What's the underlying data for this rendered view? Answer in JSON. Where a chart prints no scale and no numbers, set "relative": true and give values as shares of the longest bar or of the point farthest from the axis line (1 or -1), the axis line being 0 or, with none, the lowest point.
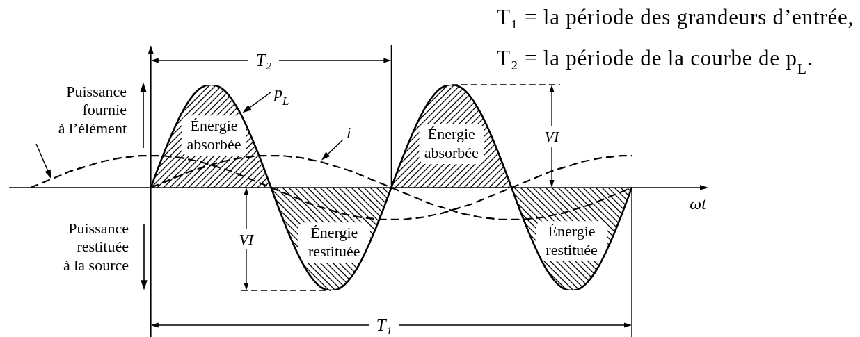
{
  "chart_data": {
    "type": "line",
    "relative": true,
    "marker": "none",
    "xlabel": "ωt",
    "categories": [
      null,
      null,
      null,
      null,
      null,
      null,
      null,
      null,
      null,
      null,
      null,
      null,
      null,
      null,
      null,
      null,
      null,
      null,
      null,
      null,
      null,
      null,
      null,
      null,
      null,
      null,
      null,
      null,
      null,
      null,
      null,
      null,
      null,
      null,
      null,
      null,
      null,
      null,
      null,
      null,
      null,
      null,
      null,
      null,
      null,
      null,
      null,
      null,
      null,
      null,
      null,
      null,
      null,
      null,
      null,
      null,
      null,
      null,
      null,
      null,
      null
    ],
    "series": [
      {
        "name": "p$_{L}$",
        "type": "area",
        "color": "#000000",
        "line_style": "solid",
        "values": [
          null,
          null,
          null,
          null,
          null,
          null,
          null,
          null,
          null,
          null,
          null,
          null,
          0,
          0.26,
          0.5,
          0.71,
          0.87,
          0.97,
          1,
          0.97,
          0.87,
          0.71,
          0.5,
          0.26,
          0,
          -0.26,
          -0.5,
          -0.71,
          -0.87,
          -0.97,
          -1,
          -0.97,
          -0.87,
          -0.71,
          -0.5,
          -0.26,
          0,
          0.26,
          0.5,
          0.71,
          0.87,
          0.97,
          1,
          0.97,
          0.87,
          0.71,
          0.5,
          0.26,
          0,
          -0.26,
          -0.5,
          -0.71,
          -0.87,
          -0.97,
          -1,
          -0.97,
          -0.87,
          -0.71,
          -0.5,
          -0.26,
          0
        ]
      },
      {
        "name": "i",
        "color": "#000000",
        "line_style": "dashed",
        "values": [
          null,
          null,
          null,
          null,
          null,
          null,
          null,
          null,
          null,
          null,
          null,
          null,
          0,
          0.04,
          0.08,
          0.12,
          0.16,
          0.19,
          0.22,
          0.25,
          0.27,
          0.29,
          0.3,
          0.31,
          0.31,
          0.31,
          0.3,
          0.29,
          0.27,
          0.25,
          0.22,
          0.19,
          0.16,
          0.12,
          0.08,
          0.04,
          0,
          -0.04,
          -0.08,
          -0.12,
          -0.16,
          -0.19,
          -0.22,
          -0.25,
          -0.27,
          -0.29,
          -0.3,
          -0.31,
          -0.31,
          -0.31,
          -0.3,
          -0.29,
          -0.27,
          -0.25,
          -0.22,
          -0.19,
          -0.16,
          -0.12,
          -0.08,
          -0.04,
          0
        ]
      },
      {
        "color": "#000000",
        "line_style": "dashed",
        "values": [
          0,
          0.04,
          0.08,
          0.12,
          0.16,
          0.19,
          0.22,
          0.25,
          0.27,
          0.29,
          0.3,
          0.31,
          0.31,
          0.31,
          0.3,
          0.29,
          0.27,
          0.25,
          0.22,
          0.19,
          0.16,
          0.12,
          0.08,
          0.04,
          0,
          -0.04,
          -0.08,
          -0.12,
          -0.16,
          -0.19,
          -0.22,
          -0.25,
          -0.27,
          -0.29,
          -0.3,
          -0.31,
          -0.31,
          -0.31,
          -0.3,
          -0.29,
          -0.27,
          -0.25,
          -0.22,
          -0.19,
          -0.16,
          -0.12,
          -0.08,
          -0.04,
          0,
          0.04,
          0.08,
          0.12,
          0.16,
          0.19,
          0.22,
          0.25,
          0.27,
          0.29,
          0.3,
          0.31,
          0.31
        ]
      }
    ],
    "annotations": [
      "T₁ = la période des grandeurs d’entrée,",
      "T₂ = la période de la courbe de p$_{L}$.",
      "T₂",
      "Puissance fournie à l’élément",
      "Énergie absorbée",
      "VI",
      "Énergie absorbée",
      "Puissance restituée à la source",
      "VI",
      "Énergie restituée",
      "Énergie restituée",
      "T₁"
    ]
  }
}
